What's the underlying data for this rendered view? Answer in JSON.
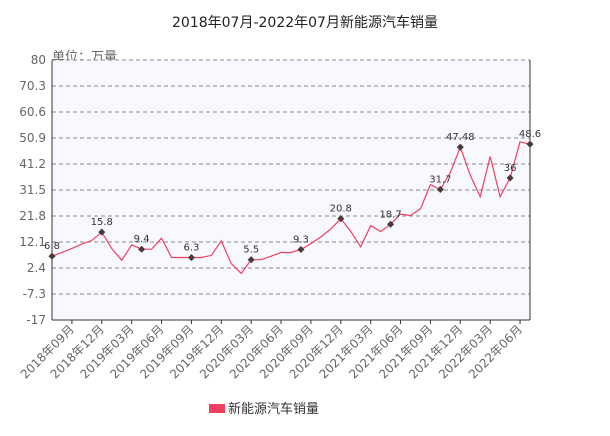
{
  "chart_data": {
    "type": "line",
    "title": "2018年07月-2022年07月新能源汽车销量",
    "unit_label": "单位：万量",
    "ylim": [
      -17,
      80
    ],
    "y_ticks": [
      "80",
      "70.3",
      "60.6",
      "50.9",
      "41.2",
      "31.5",
      "21.8",
      "12.1",
      "2.4",
      "-7.3",
      "-17"
    ],
    "grid": "horizontal-dashed",
    "x_tick_labels": [
      "2018年09月",
      "2018年12月",
      "2019年03月",
      "2019年06月",
      "2019年09月",
      "2019年12月",
      "2020年03月",
      "2020年06月",
      "2020年09月",
      "2020年12月",
      "2021年03月",
      "2021年06月",
      "2021年09月",
      "2021年12月",
      "2022年03月",
      "2022年06月"
    ],
    "legend": {
      "position": "bottom",
      "label": "新能源汽车销量"
    },
    "colors": {
      "line": "#f04060",
      "marker": "#4a3a3a",
      "plot_bg": "#f8f8ff",
      "grid": "#666666"
    },
    "series": [
      {
        "name": "新能源汽车销量",
        "x": [
          "2018年07月",
          "2018年08月",
          "2018年09月",
          "2018年10月",
          "2018年11月",
          "2018年12月",
          "2019年01月",
          "2019年02月",
          "2019年03月",
          "2019年04月",
          "2019年05月",
          "2019年06月",
          "2019年07月",
          "2019年08月",
          "2019年09月",
          "2019年10月",
          "2019年11月",
          "2019年12月",
          "2020年01月",
          "2020年02月",
          "2020年03月",
          "2020年04月",
          "2020年05月",
          "2020年06月",
          "2020年07月",
          "2020年08月",
          "2020年09月",
          "2020年10月",
          "2020年11月",
          "2020年12月",
          "2021年01月",
          "2021年02月",
          "2021年03月",
          "2021年04月",
          "2021年05月",
          "2021年06月",
          "2021年07月",
          "2021年08月",
          "2021年09月",
          "2021年10月",
          "2021年11月",
          "2021年12月",
          "2022年01月",
          "2022年02月",
          "2022年03月",
          "2022年04月",
          "2022年05月",
          "2022年06月",
          "2022年07月"
        ],
        "values": [
          6.8,
          8.2,
          9.7,
          11.3,
          12.7,
          15.8,
          9.6,
          5.3,
          11.0,
          9.4,
          9.4,
          13.5,
          6.3,
          6.3,
          6.3,
          6.3,
          7.1,
          12.5,
          4.0,
          0.4,
          5.5,
          5.5,
          6.8,
          8.2,
          8.2,
          9.3,
          11.5,
          14.0,
          17.0,
          20.8,
          16.0,
          10.3,
          18.2,
          16.0,
          18.7,
          22.5,
          22.0,
          24.5,
          33.5,
          31.7,
          38.0,
          47.48,
          37.0,
          29.0,
          44.0,
          29.0,
          36.0,
          49.5,
          48.6
        ]
      }
    ],
    "data_labels": [
      {
        "index": 0,
        "text": "6.8"
      },
      {
        "index": 5,
        "text": "15.8"
      },
      {
        "index": 9,
        "text": "9.4"
      },
      {
        "index": 14,
        "text": "6.3"
      },
      {
        "index": 20,
        "text": "5.5"
      },
      {
        "index": 25,
        "text": "9.3"
      },
      {
        "index": 29,
        "text": "20.8"
      },
      {
        "index": 34,
        "text": "18.7"
      },
      {
        "index": 39,
        "text": "31.7"
      },
      {
        "index": 41,
        "text": "47.48"
      },
      {
        "index": 46,
        "text": "36"
      },
      {
        "index": 48,
        "text": "48.6"
      }
    ]
  }
}
